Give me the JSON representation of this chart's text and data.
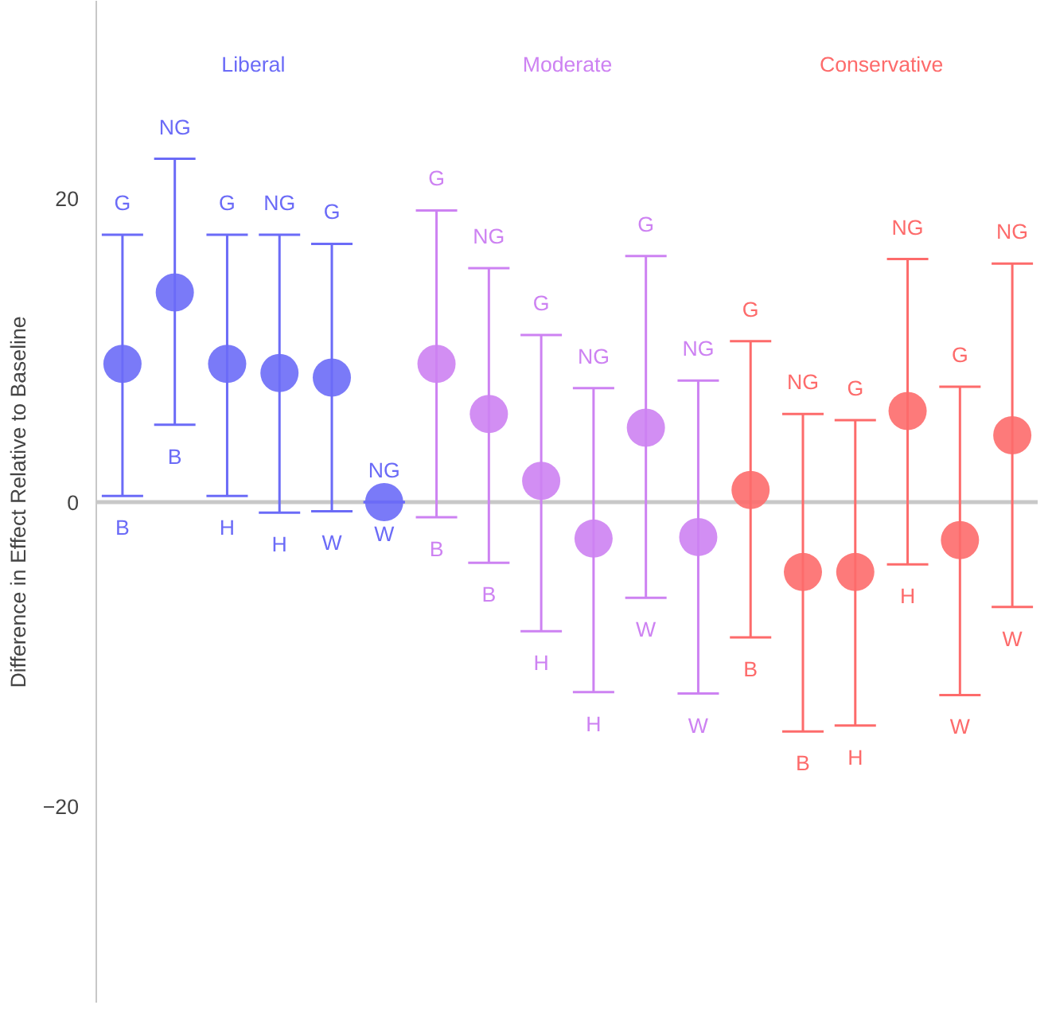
{
  "chart_data": {
    "type": "scatter",
    "ylabel": "Difference in Effect Relative to Baseline",
    "categories": [
      null,
      null,
      null,
      null,
      null,
      null,
      null,
      null,
      null,
      null,
      null,
      null,
      null,
      null,
      null,
      null,
      null,
      null
    ],
    "series": [
      {
        "name": "Liberal",
        "color": "#6b6bf7",
        "values": [
          9.1,
          13.8,
          9.1,
          8.5,
          8.2,
          0,
          null,
          null,
          null,
          null,
          null,
          null,
          null,
          null,
          null,
          null,
          null,
          null
        ],
        "errors": [
          [
            0.4,
            17.6
          ],
          [
            5.1,
            22.6
          ],
          [
            0.4,
            17.6
          ],
          [
            -0.7,
            17.6
          ],
          [
            -0.6,
            17.0
          ],
          [
            0,
            0
          ],
          null,
          null,
          null,
          null,
          null,
          null,
          null,
          null,
          null,
          null,
          null,
          null
        ]
      },
      {
        "name": "Moderate",
        "color": "#cd82f2",
        "values": [
          null,
          null,
          null,
          null,
          null,
          null,
          9.1,
          5.8,
          1.4,
          -2.4,
          4.9,
          -2.3,
          null,
          null,
          null,
          null,
          null,
          null
        ],
        "errors": [
          null,
          null,
          null,
          null,
          null,
          null,
          [
            -1.0,
            19.2
          ],
          [
            -4.0,
            15.4
          ],
          [
            -8.5,
            11.0
          ],
          [
            -12.5,
            7.5
          ],
          [
            -6.3,
            16.2
          ],
          [
            -12.6,
            8.0
          ],
          null,
          null,
          null,
          null,
          null,
          null
        ]
      },
      {
        "name": "Conservative",
        "color": "#fd6b6b",
        "values": [
          null,
          null,
          null,
          null,
          null,
          null,
          null,
          null,
          null,
          null,
          null,
          null,
          0.8,
          -4.6,
          -4.6,
          6.0,
          -2.5,
          4.4
        ],
        "errors": [
          null,
          null,
          null,
          null,
          null,
          null,
          null,
          null,
          null,
          null,
          null,
          null,
          [
            -8.9,
            10.6
          ],
          [
            -15.1,
            5.8
          ],
          [
            -14.7,
            5.4
          ],
          [
            -4.1,
            16.0
          ],
          [
            -12.7,
            7.6
          ],
          [
            -6.9,
            15.7
          ]
        ]
      }
    ],
    "annotations": [
      "G",
      "B",
      "NG",
      "B",
      "G",
      "H",
      "NG",
      "H",
      "G",
      "W",
      "NG",
      "W",
      "G",
      "B",
      "NG",
      "B",
      "G",
      "H",
      "NG",
      "H",
      "G",
      "W",
      "NG",
      "W",
      "G",
      "B",
      "NG",
      "B",
      "G",
      "H",
      "NG",
      "H",
      "G",
      "W",
      "NG",
      "W"
    ],
    "ref_lines": [
      {
        "axis": "y",
        "value": 0,
        "color": "#c8c8c8"
      }
    ],
    "ylim": [
      -33,
      33
    ],
    "yticks": [
      20,
      0,
      {
        "value": -20,
        "label": "−20"
      }
    ],
    "tick_labels": "y",
    "marker": "circle",
    "grid": false
  }
}
